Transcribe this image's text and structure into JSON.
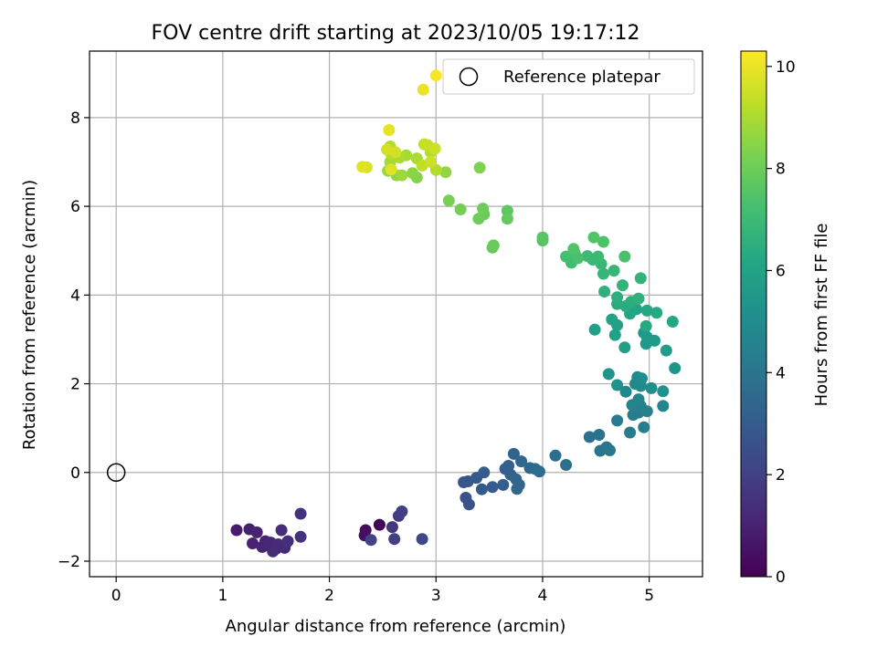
{
  "colors": {
    "frame": "#000000",
    "grid": "#b0b0b0",
    "colormap": "viridis",
    "reference_marker": "#000000"
  },
  "chart_data": {
    "type": "scatter",
    "title": "FOV centre drift starting at 2023/10/05 19:17:12",
    "xlabel": "Angular distance from reference (arcmin)",
    "ylabel": "Rotation from reference (arcmin)",
    "xlim": [
      -0.25,
      5.5
    ],
    "ylim": [
      -2.35,
      9.5
    ],
    "xticks": [
      0,
      1,
      2,
      3,
      4,
      5
    ],
    "yticks": [
      -2,
      0,
      2,
      4,
      6,
      8
    ],
    "grid": true,
    "legend": {
      "position": "top-right",
      "entries": [
        "Reference platepar"
      ]
    },
    "colorbar": {
      "label": "Hours from first FF file",
      "range": [
        0,
        10.3
      ],
      "ticks": [
        0,
        2,
        4,
        6,
        8,
        10
      ],
      "colormap": "viridis"
    },
    "reference_point": {
      "x": 0,
      "y": 0,
      "label": "Reference platepar"
    },
    "points": [
      [
        2.47,
        -1.18,
        0.1
      ],
      [
        2.34,
        -1.3,
        0.3
      ],
      [
        2.33,
        -1.42,
        0.4
      ],
      [
        1.13,
        -1.3,
        0.8
      ],
      [
        1.25,
        -1.28,
        0.9
      ],
      [
        1.32,
        -1.35,
        1.0
      ],
      [
        1.28,
        -1.6,
        1.0
      ],
      [
        1.4,
        -1.55,
        1.1
      ],
      [
        1.37,
        -1.68,
        1.1
      ],
      [
        1.45,
        -1.58,
        1.2
      ],
      [
        1.5,
        -1.72,
        1.2
      ],
      [
        1.43,
        -1.65,
        1.2
      ],
      [
        1.47,
        -1.78,
        1.3
      ],
      [
        1.52,
        -1.62,
        1.3
      ],
      [
        1.58,
        -1.7,
        1.3
      ],
      [
        1.55,
        -1.3,
        1.4
      ],
      [
        1.61,
        -1.55,
        1.4
      ],
      [
        1.73,
        -1.45,
        1.5
      ],
      [
        1.73,
        -0.93,
        1.5
      ],
      [
        2.59,
        -1.23,
        1.7
      ],
      [
        2.65,
        -0.98,
        1.8
      ],
      [
        2.68,
        -0.88,
        1.9
      ],
      [
        2.61,
        -1.5,
        2.0
      ],
      [
        2.39,
        -1.52,
        2.1
      ],
      [
        2.87,
        -1.5,
        2.2
      ],
      [
        3.28,
        -0.57,
        2.6
      ],
      [
        3.26,
        -0.22,
        2.7
      ],
      [
        3.31,
        -0.72,
        2.7
      ],
      [
        3.3,
        -0.2,
        2.8
      ],
      [
        3.38,
        -0.12,
        2.9
      ],
      [
        3.43,
        -0.38,
        2.9
      ],
      [
        3.45,
        0.0,
        3.0
      ],
      [
        3.53,
        -0.33,
        3.0
      ],
      [
        3.63,
        -0.28,
        3.1
      ],
      [
        3.65,
        0.08,
        3.1
      ],
      [
        3.68,
        0.15,
        3.2
      ],
      [
        3.7,
        -0.05,
        3.2
      ],
      [
        3.73,
        0.42,
        3.3
      ],
      [
        3.75,
        -0.15,
        3.3
      ],
      [
        3.78,
        -0.28,
        3.4
      ],
      [
        3.76,
        -0.37,
        3.4
      ],
      [
        3.8,
        0.25,
        3.5
      ],
      [
        3.88,
        0.1,
        3.5
      ],
      [
        3.93,
        0.08,
        3.6
      ],
      [
        3.97,
        0.02,
        3.6
      ],
      [
        4.12,
        0.38,
        3.7
      ],
      [
        4.22,
        0.17,
        3.8
      ],
      [
        4.44,
        0.8,
        3.9
      ],
      [
        4.53,
        0.85,
        3.9
      ],
      [
        4.54,
        0.49,
        4.0
      ],
      [
        4.6,
        0.57,
        4.0
      ],
      [
        4.63,
        0.5,
        4.1
      ],
      [
        4.7,
        1.17,
        4.2
      ],
      [
        4.82,
        0.9,
        4.2
      ],
      [
        4.85,
        1.3,
        4.3
      ],
      [
        4.9,
        1.35,
        4.3
      ],
      [
        4.95,
        1.02,
        4.4
      ],
      [
        4.92,
        1.5,
        4.4
      ],
      [
        4.98,
        1.38,
        4.5
      ],
      [
        4.84,
        1.52,
        4.5
      ],
      [
        4.9,
        1.65,
        4.6
      ],
      [
        5.13,
        1.5,
        4.7
      ],
      [
        4.78,
        1.82,
        4.8
      ],
      [
        4.87,
        2.0,
        4.8
      ],
      [
        4.92,
        1.95,
        4.9
      ],
      [
        4.89,
        2.15,
        4.9
      ],
      [
        4.93,
        2.12,
        5.0
      ],
      [
        5.02,
        1.9,
        5.1
      ],
      [
        5.13,
        1.83,
        5.2
      ],
      [
        4.7,
        1.97,
        5.2
      ],
      [
        4.62,
        2.22,
        5.3
      ],
      [
        5.24,
        2.35,
        5.4
      ],
      [
        4.97,
        2.9,
        5.5
      ],
      [
        4.95,
        3.15,
        5.5
      ],
      [
        4.98,
        3.05,
        5.6
      ],
      [
        5.05,
        2.97,
        5.6
      ],
      [
        5.16,
        2.75,
        5.7
      ],
      [
        4.77,
        2.82,
        5.8
      ],
      [
        4.49,
        3.22,
        5.8
      ],
      [
        4.68,
        3.1,
        5.9
      ],
      [
        4.7,
        3.32,
        5.9
      ],
      [
        4.65,
        3.45,
        6.0
      ],
      [
        4.82,
        3.58,
        6.1
      ],
      [
        4.88,
        3.68,
        6.1
      ],
      [
        4.98,
        3.65,
        6.2
      ],
      [
        5.22,
        3.4,
        6.2
      ],
      [
        4.97,
        3.3,
        6.3
      ],
      [
        5.07,
        3.6,
        6.3
      ],
      [
        4.7,
        3.8,
        6.4
      ],
      [
        4.78,
        3.75,
        6.4
      ],
      [
        4.7,
        3.95,
        6.5
      ],
      [
        4.83,
        3.85,
        6.5
      ],
      [
        4.9,
        3.92,
        6.6
      ],
      [
        4.58,
        4.08,
        6.6
      ],
      [
        4.92,
        4.38,
        6.7
      ],
      [
        4.75,
        4.22,
        6.7
      ],
      [
        4.57,
        4.48,
        6.8
      ],
      [
        4.67,
        4.55,
        6.8
      ],
      [
        4.55,
        4.7,
        6.9
      ],
      [
        4.47,
        4.8,
        6.9
      ],
      [
        4.52,
        4.87,
        7.0
      ],
      [
        4.42,
        4.88,
        7.0
      ],
      [
        4.27,
        4.73,
        7.1
      ],
      [
        4.26,
        4.82,
        7.1
      ],
      [
        4.3,
        4.95,
        7.2
      ],
      [
        4.22,
        4.87,
        7.2
      ],
      [
        4.33,
        4.83,
        7.3
      ],
      [
        4.77,
        4.87,
        7.3
      ],
      [
        4.57,
        5.2,
        7.4
      ],
      [
        4.48,
        5.3,
        7.5
      ],
      [
        4.29,
        5.04,
        7.5
      ],
      [
        4.0,
        5.3,
        7.6
      ],
      [
        4.0,
        5.23,
        7.6
      ],
      [
        3.67,
        5.9,
        7.7
      ],
      [
        3.67,
        5.72,
        7.8
      ],
      [
        3.53,
        5.07,
        7.8
      ],
      [
        3.54,
        5.12,
        7.9
      ],
      [
        3.45,
        5.82,
        7.9
      ],
      [
        3.44,
        5.95,
        8.0
      ],
      [
        3.4,
        5.72,
        8.0
      ],
      [
        3.23,
        5.93,
        8.1
      ],
      [
        3.12,
        6.13,
        8.2
      ],
      [
        3.41,
        6.87,
        8.3
      ],
      [
        2.82,
        6.65,
        8.4
      ],
      [
        2.78,
        6.75,
        8.5
      ],
      [
        2.63,
        6.7,
        8.6
      ],
      [
        3.09,
        6.77,
        8.6
      ],
      [
        2.55,
        6.8,
        8.7
      ],
      [
        2.68,
        6.7,
        8.8
      ],
      [
        2.57,
        7.0,
        8.9
      ],
      [
        2.72,
        7.15,
        8.9
      ],
      [
        2.82,
        7.08,
        9.0
      ],
      [
        2.66,
        7.1,
        9.0
      ],
      [
        2.57,
        7.35,
        9.1
      ],
      [
        3.0,
        6.82,
        9.1
      ],
      [
        2.58,
        7.18,
        9.2
      ],
      [
        2.95,
        7.22,
        9.2
      ],
      [
        2.87,
        6.92,
        9.3
      ],
      [
        2.92,
        7.38,
        9.3
      ],
      [
        2.89,
        7.4,
        9.4
      ],
      [
        2.99,
        7.3,
        9.5
      ],
      [
        2.95,
        7.0,
        9.5
      ],
      [
        2.54,
        7.28,
        9.6
      ],
      [
        2.62,
        7.22,
        9.6
      ],
      [
        2.35,
        6.88,
        9.7
      ],
      [
        2.31,
        6.89,
        9.8
      ],
      [
        2.58,
        6.83,
        9.8
      ],
      [
        2.56,
        7.72,
        9.9
      ],
      [
        2.88,
        8.63,
        10.0
      ],
      [
        3.0,
        8.95,
        10.2
      ]
    ]
  }
}
